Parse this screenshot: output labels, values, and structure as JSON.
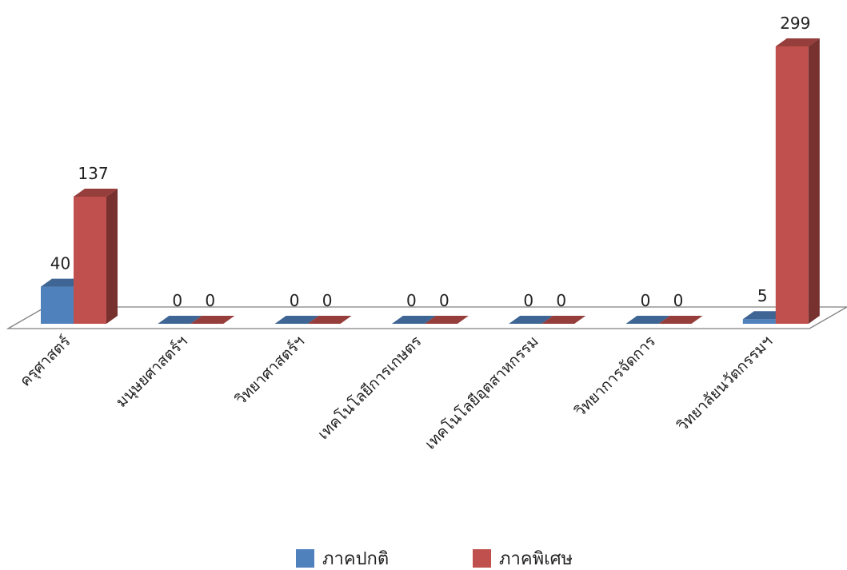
{
  "chart_data": {
    "type": "bar",
    "categories": [
      "ครุศาสตร์",
      "มนุษยศาสตร์ฯ",
      "วิทยาศาสตร์ฯ",
      "เทคโนโลยีการเกษตร",
      "เทคโนโลยีอุตสาหกรรม",
      "วิทยาการจัดการ",
      "วิทยาลัยนวัตกรรมฯ"
    ],
    "series": [
      {
        "name": "ภาคปกติ",
        "values": [
          40,
          0,
          0,
          0,
          0,
          0,
          5
        ],
        "color": "#4f81bd"
      },
      {
        "name": "ภาคพิเศษ",
        "values": [
          137,
          0,
          0,
          0,
          0,
          0,
          299
        ],
        "color": "#c0504d"
      }
    ],
    "ylim": [
      0,
      299
    ],
    "grid": false,
    "legend_position": "bottom",
    "data_labels": true
  }
}
